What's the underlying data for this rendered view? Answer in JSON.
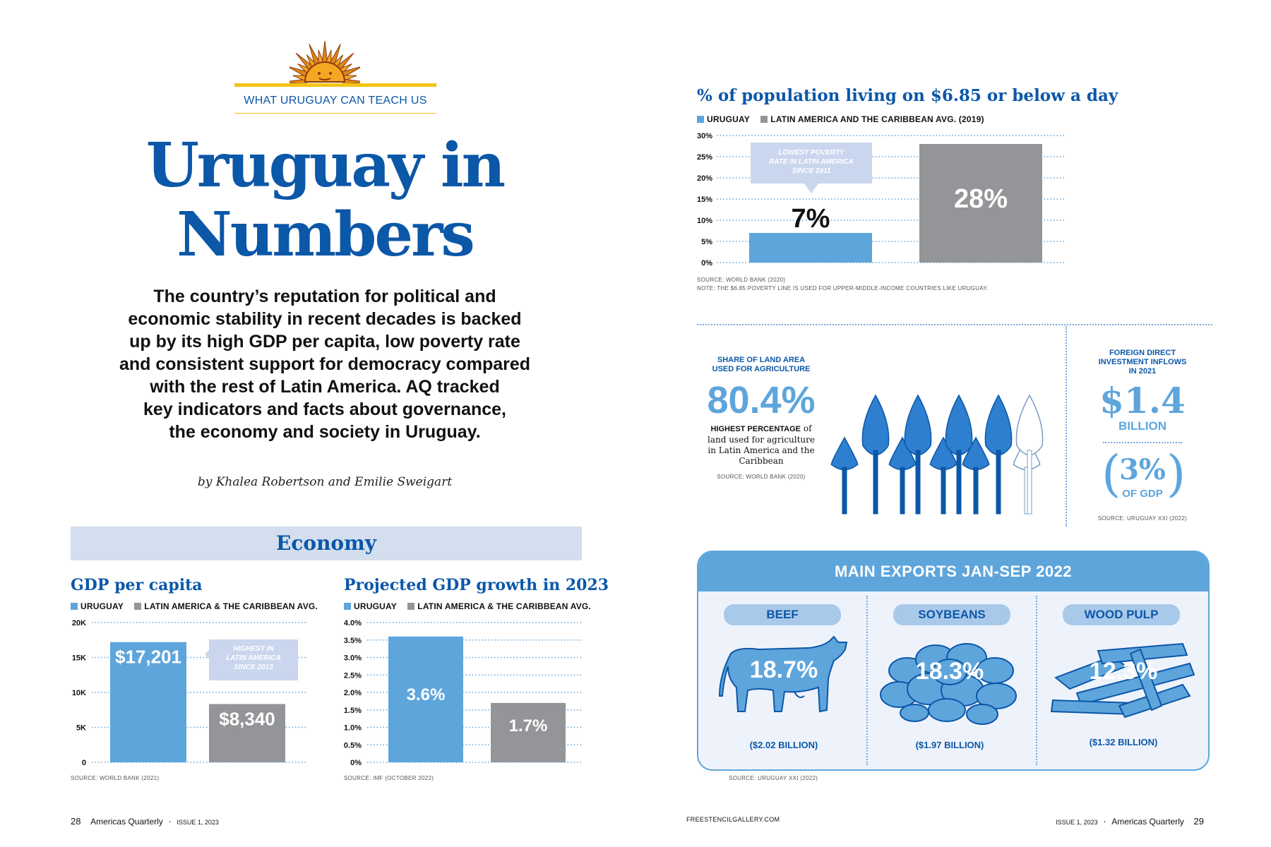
{
  "kicker": "WHAT URUGUAY CAN TEACH US",
  "title": {
    "line1": "Uruguay in",
    "line2": "Numbers"
  },
  "intro": [
    "The country’s reputation for political and",
    "economic stability in recent decades is backed",
    "up by its high GDP per capita, low poverty rate",
    "and consistent support for democracy compared",
    "with the rest of Latin America. AQ tracked",
    "key indicators and facts about governance,",
    "the economy and society in Uruguay."
  ],
  "byline": "by Khalea Robertson and Emilie Sweigart",
  "section": "Economy",
  "colors": {
    "uruguay": "#5ea5dc",
    "latam": "#939598",
    "brand": "#0b57a8",
    "callout": "#c9d6ee"
  },
  "gdp": {
    "title": "GDP per capita",
    "legend": [
      "URUGUAY",
      "LATIN AMERICA & THE CARIBBEAN AVG."
    ],
    "callout": [
      "HIGHEST IN",
      "LATIN AMERICA",
      "SINCE 2013"
    ],
    "source": "SOURCE: WORLD BANK (2021)"
  },
  "growth": {
    "title": "Projected GDP growth in 2023",
    "legend": [
      "URUGUAY",
      "LATIN AMERICA & THE CARIBBEAN AVG."
    ],
    "source": "SOURCE: IMF (OCTOBER 2022)"
  },
  "poverty": {
    "title": "% of population living on $6.85 or below a day",
    "legend": [
      "URUGUAY",
      "LATIN AMERICA AND THE CARIBBEAN AVG. (2019)"
    ],
    "callout": [
      "LOWEST POVERTY",
      "RATE IN LATIN AMERICA",
      "SINCE 2011"
    ],
    "source": "SOURCE: WORLD BANK (2020)",
    "note": "NOTE: THE $6.85 POVERTY LINE IS USED FOR UPPER-MIDDLE-INCOME COUNTRIES LIKE URUGUAY."
  },
  "chart_data": [
    {
      "type": "bar",
      "title": "GDP per capita",
      "categories": [
        "URUGUAY",
        "LATIN AMERICA & THE CARIBBEAN AVG."
      ],
      "values": [
        17201,
        8340
      ],
      "labels": [
        "$17,201",
        "$8,340"
      ],
      "ylim": [
        0,
        20000
      ],
      "yticks": [
        0,
        5000,
        10000,
        15000,
        20000
      ],
      "ytick_labels": [
        "0",
        "5K",
        "10K",
        "15K",
        "20K"
      ],
      "grid": true
    },
    {
      "type": "bar",
      "title": "Projected GDP growth in 2023",
      "categories": [
        "URUGUAY",
        "LATIN AMERICA & THE CARIBBEAN AVG."
      ],
      "values": [
        3.6,
        1.7
      ],
      "labels": [
        "3.6%",
        "1.7%"
      ],
      "ylim": [
        0,
        4.0
      ],
      "yticks": [
        0,
        0.5,
        1.0,
        1.5,
        2.0,
        2.5,
        3.0,
        3.5,
        4.0
      ],
      "ytick_labels": [
        "0%",
        "0.5%",
        "1.0%",
        "1.5%",
        "2.0%",
        "2.5%",
        "3.0%",
        "3.5%",
        "4.0%"
      ],
      "grid": true
    },
    {
      "type": "bar",
      "title": "% of population living on $6.85 or below a day",
      "categories": [
        "URUGUAY",
        "LATIN AMERICA AND THE CARIBBEAN AVG. (2019)"
      ],
      "values": [
        7,
        28
      ],
      "labels": [
        "7%",
        "28%"
      ],
      "ylim": [
        0,
        30
      ],
      "yticks": [
        0,
        5,
        10,
        15,
        20,
        25,
        30
      ],
      "ytick_labels": [
        "0%",
        "5%",
        "10%",
        "15%",
        "20%",
        "25%",
        "30%"
      ],
      "grid": true
    }
  ],
  "land": {
    "heading": [
      "SHARE OF LAND AREA",
      "USED FOR AGRICULTURE"
    ],
    "value": "80.4%",
    "highlight": "HIGHEST PERCENTAGE",
    "desc_rest": "of",
    "desc": [
      "land used for agriculture",
      "in Latin America and the",
      "Caribbean"
    ],
    "source": "SOURCE: WORLD BANK (2020)",
    "trees_total": 10,
    "trees_filled": 8
  },
  "fdi": {
    "heading": [
      "FOREIGN DIRECT",
      "INVESTMENT INFLOWS",
      "IN 2021"
    ],
    "value": "$1.4",
    "unit": "BILLION",
    "pct": "3%",
    "pct_label": "OF GDP",
    "source": "SOURCE: URUGUAY XXI (2022)"
  },
  "exports": {
    "title": "MAIN EXPORTS JAN-SEP 2022",
    "items": [
      {
        "name": "BEEF",
        "pct": "18.7%",
        "value": "($2.02 BILLION)",
        "icon": "cow-icon"
      },
      {
        "name": "SOYBEANS",
        "pct": "18.3%",
        "value": "($1.97 BILLION)",
        "icon": "soybeans-icon"
      },
      {
        "name": "WOOD PULP",
        "pct": "12.3%",
        "value": "($1.32 BILLION)",
        "icon": "wood-pulp-icon"
      }
    ],
    "source": "SOURCE: URUGUAY XXI (2022)"
  },
  "footer": {
    "left_page": "28",
    "left_pub": "Americas Quarterly",
    "left_issue": "ISSUE 1, 2023",
    "credit": "FREESTENCILGALLERY.COM",
    "right_issue": "ISSUE 1, 2023",
    "right_pub": "Americas Quarterly",
    "right_page": "29"
  }
}
